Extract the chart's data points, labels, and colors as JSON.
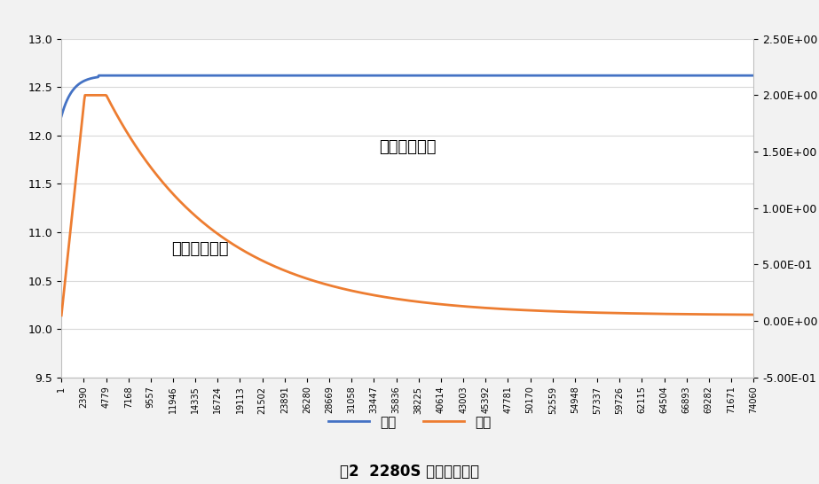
{
  "title": "图2  2280S 电池充电曲线",
  "x_ticks": [
    1,
    2390,
    4779,
    7168,
    9557,
    11946,
    14335,
    16724,
    19113,
    21502,
    23891,
    26280,
    28669,
    31058,
    33447,
    35836,
    38225,
    40614,
    43003,
    45392,
    47781,
    50170,
    52559,
    54948,
    57337,
    59726,
    62115,
    64504,
    66893,
    69282,
    71671,
    74060
  ],
  "voltage_label": "电压",
  "current_label": "电流",
  "annotation_voltage": "充电电压曲线",
  "annotation_current": "充电电流曲线",
  "left_ylim": [
    9.5,
    13.0
  ],
  "right_ylim": [
    -0.5,
    2.5
  ],
  "left_yticks": [
    9.5,
    10.0,
    10.5,
    11.0,
    11.5,
    12.0,
    12.5,
    13.0
  ],
  "right_ytick_vals": [
    -0.5,
    0.0,
    0.5,
    1.0,
    1.5,
    2.0,
    2.5
  ],
  "right_ytick_labels": [
    "-5.00E-01",
    "0.00E+00",
    "5.00E-01",
    "1.00E+00",
    "1.50E+00",
    "2.00E+00",
    "2.50E+00"
  ],
  "voltage_color": "#4472C4",
  "current_color": "#ED7D31",
  "outer_bg_color": "#F2F2F2",
  "plot_bg_color": "#FFFFFF",
  "grid_color": "#D9D9D9",
  "title_fontsize": 12,
  "annotation_fontsize": 13,
  "tick_fontsize": 9,
  "xtick_fontsize": 7,
  "legend_fontsize": 11
}
